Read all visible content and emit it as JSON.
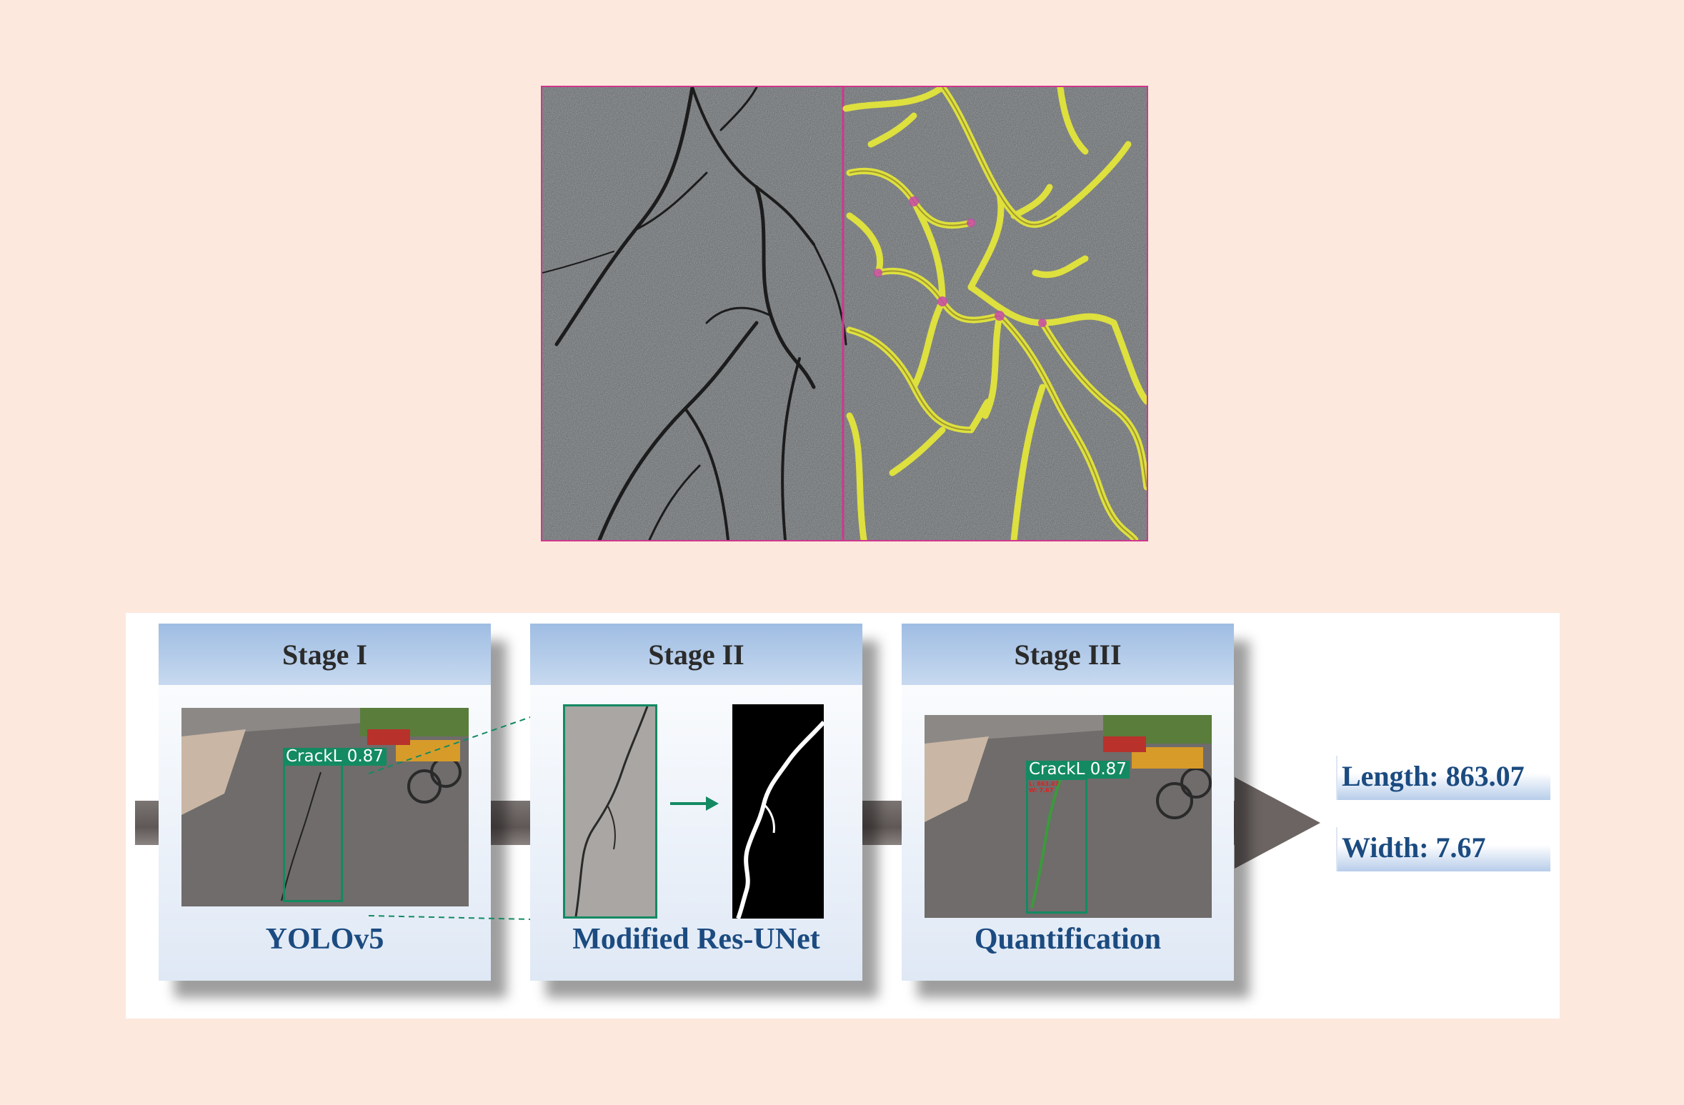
{
  "stages": [
    {
      "title": "Stage I",
      "caption": "YOLOv5"
    },
    {
      "title": "Stage II",
      "caption": "Modified Res-UNet"
    },
    {
      "title": "Stage III",
      "caption": "Quantification"
    }
  ],
  "detection": {
    "label": "CrackL 0.87"
  },
  "quantification": {
    "overlay_length": "L: 863.07",
    "overlay_width": "W: 7.67"
  },
  "results": {
    "length": "Length: 863.07",
    "width": "Width: 7.67"
  },
  "colors": {
    "page_background": "#fde8dd",
    "stage_header": "#a9c4e6",
    "caption_text": "#1b4b80",
    "bbox_green": "#138a62",
    "crack_overlay_yellow": "#e3e63a",
    "divider_magenta": "#d0368e"
  }
}
